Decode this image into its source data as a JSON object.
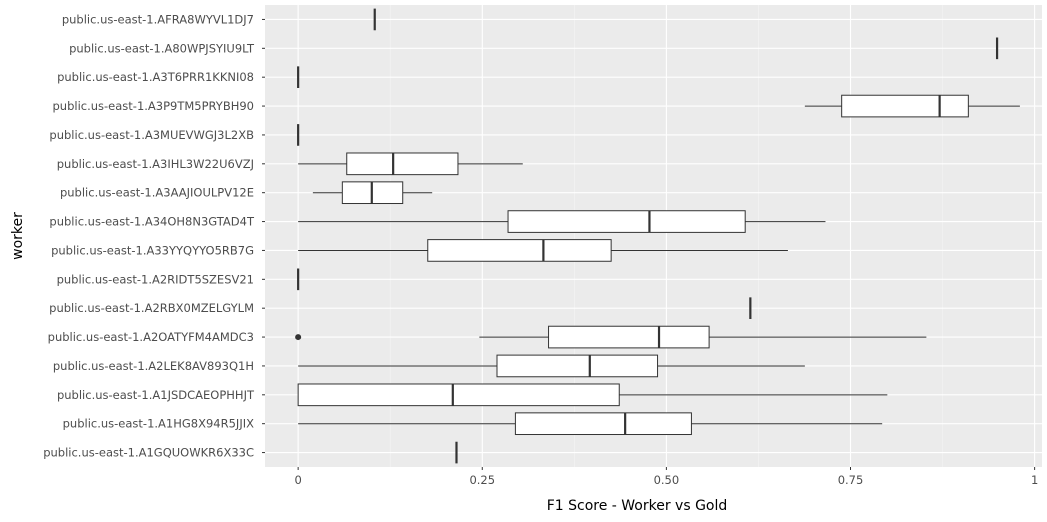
{
  "chart_data": {
    "type": "boxplot",
    "orientation": "horizontal",
    "title": "",
    "xlabel": "F1 Score - Worker vs Gold",
    "ylabel": "worker",
    "xlim": [
      -0.045,
      1.01
    ],
    "x_ticks": [
      0,
      0.25,
      0.5,
      0.75,
      1
    ],
    "x_tick_labels": [
      "0",
      "0.25",
      "0.50",
      "0.75",
      "1"
    ],
    "grid": true,
    "legend": "none",
    "categories": [
      {
        "label": "public.us-east-1.AFRA8WYVL1DJ7",
        "min": 0.104,
        "q1": 0.104,
        "median": 0.104,
        "q3": 0.104,
        "max": 0.104,
        "outliers": []
      },
      {
        "label": "public.us-east-1.A80WPJSYIU9LT",
        "min": 0.949,
        "q1": 0.949,
        "median": 0.949,
        "q3": 0.949,
        "max": 0.949,
        "outliers": []
      },
      {
        "label": "public.us-east-1.A3T6PRR1KKNI08",
        "min": 0.0,
        "q1": 0.0,
        "median": 0.0,
        "q3": 0.0,
        "max": 0.0,
        "outliers": []
      },
      {
        "label": "public.us-east-1.A3P9TM5PRYBH90",
        "min": 0.688,
        "q1": 0.738,
        "median": 0.871,
        "q3": 0.91,
        "max": 0.98,
        "outliers": []
      },
      {
        "label": "public.us-east-1.A3MUEVWGJ3L2XB",
        "min": 0.0,
        "q1": 0.0,
        "median": 0.0,
        "q3": 0.0,
        "max": 0.0,
        "outliers": []
      },
      {
        "label": "public.us-east-1.A3IHL3W22U6VZJ",
        "min": 0.0,
        "q1": 0.066,
        "median": 0.129,
        "q3": 0.217,
        "max": 0.305,
        "outliers": []
      },
      {
        "label": "public.us-east-1.A3AAJIOULPV12E",
        "min": 0.02,
        "q1": 0.06,
        "median": 0.1,
        "q3": 0.142,
        "max": 0.182,
        "outliers": []
      },
      {
        "label": "public.us-east-1.A34OH8N3GTAD4T",
        "min": 0.0,
        "q1": 0.285,
        "median": 0.477,
        "q3": 0.607,
        "max": 0.716,
        "outliers": []
      },
      {
        "label": "public.us-east-1.A33YYQYYO5RB7G",
        "min": 0.0,
        "q1": 0.176,
        "median": 0.333,
        "q3": 0.425,
        "max": 0.665,
        "outliers": []
      },
      {
        "label": "public.us-east-1.A2RIDT5SZESV21",
        "min": 0.0,
        "q1": 0.0,
        "median": 0.0,
        "q3": 0.0,
        "max": 0.0,
        "outliers": []
      },
      {
        "label": "public.us-east-1.A2RBX0MZELGYLM",
        "min": 0.614,
        "q1": 0.614,
        "median": 0.614,
        "q3": 0.614,
        "max": 0.614,
        "outliers": []
      },
      {
        "label": "public.us-east-1.A2OATYFM4AMDC3",
        "min": 0.246,
        "q1": 0.34,
        "median": 0.49,
        "q3": 0.558,
        "max": 0.853,
        "outliers": [
          0.0
        ]
      },
      {
        "label": "public.us-east-1.A2LEK8AV893Q1H",
        "min": 0.0,
        "q1": 0.27,
        "median": 0.396,
        "q3": 0.488,
        "max": 0.688,
        "outliers": []
      },
      {
        "label": "public.us-east-1.A1JSDCAEOPHHJT",
        "min": 0.0,
        "q1": 0.0,
        "median": 0.21,
        "q3": 0.436,
        "max": 0.8,
        "outliers": []
      },
      {
        "label": "public.us-east-1.A1HG8X94R5JJIX",
        "min": 0.0,
        "q1": 0.295,
        "median": 0.444,
        "q3": 0.534,
        "max": 0.793,
        "outliers": []
      },
      {
        "label": "public.us-east-1.A1GQUOWKR6X33C",
        "min": 0.215,
        "q1": 0.215,
        "median": 0.215,
        "q3": 0.215,
        "max": 0.215,
        "outliers": []
      }
    ]
  }
}
